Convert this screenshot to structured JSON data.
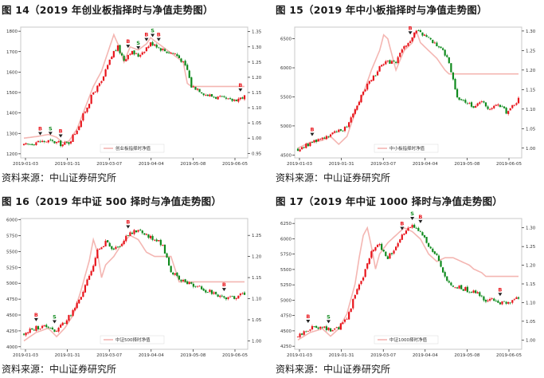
{
  "figures": [
    {
      "title": "图 14（2019 年创业板指择时与净值走势图）",
      "source": "资料来源：中山证券研究所",
      "chart_data": {
        "type": "candlestick",
        "x_ticks": [
          "2019-01-03",
          "2019-01-31",
          "2019-03-07",
          "2019-04-04",
          "2019-05-08",
          "2019-06-05"
        ],
        "left_axis": {
          "ticks": [
            1200,
            1300,
            1400,
            1500,
            1600,
            1700,
            1800
          ],
          "range": [
            1180,
            1820
          ]
        },
        "right_axis": {
          "ticks": [
            "0.95",
            "1.00",
            "1.05",
            "1.10",
            "1.15",
            "1.20",
            "1.25",
            "1.30",
            "1.35"
          ],
          "range": [
            0.935,
            1.365
          ]
        },
        "legend": "创业板指择时净值",
        "index_path": [
          [
            0,
            1240
          ],
          [
            6,
            1258
          ],
          [
            12,
            1262
          ],
          [
            16,
            1255
          ],
          [
            19,
            1245
          ],
          [
            22,
            1255
          ],
          [
            26,
            1320
          ],
          [
            30,
            1410
          ],
          [
            34,
            1500
          ],
          [
            38,
            1550
          ],
          [
            41,
            1630
          ],
          [
            44,
            1700
          ],
          [
            46,
            1720
          ],
          [
            49,
            1660
          ],
          [
            52,
            1700
          ],
          [
            56,
            1680
          ],
          [
            60,
            1720
          ],
          [
            62,
            1740
          ],
          [
            64,
            1740
          ],
          [
            66,
            1720
          ],
          [
            70,
            1700
          ],
          [
            74,
            1690
          ],
          [
            77,
            1660
          ],
          [
            80,
            1610
          ],
          [
            82,
            1530
          ],
          [
            85,
            1520
          ],
          [
            89,
            1490
          ],
          [
            93,
            1480
          ],
          [
            97,
            1470
          ],
          [
            101,
            1460
          ],
          [
            105,
            1470
          ],
          [
            108,
            1480
          ]
        ],
        "nav_path": [
          [
            0,
            1.0
          ],
          [
            6,
            1.005
          ],
          [
            12,
            1.012
          ],
          [
            16,
            1.003
          ],
          [
            19,
            0.985
          ],
          [
            22,
            0.99
          ],
          [
            26,
            1.03
          ],
          [
            30,
            1.1
          ],
          [
            34,
            1.17
          ],
          [
            38,
            1.22
          ],
          [
            41,
            1.28
          ],
          [
            44,
            1.34
          ],
          [
            46,
            1.31
          ],
          [
            49,
            1.25
          ],
          [
            52,
            1.3
          ],
          [
            56,
            1.29
          ],
          [
            60,
            1.31
          ],
          [
            62,
            1.33
          ],
          [
            64,
            1.32
          ],
          [
            66,
            1.31
          ],
          [
            70,
            1.29
          ],
          [
            74,
            1.27
          ],
          [
            78,
            1.25
          ],
          [
            80,
            1.18
          ],
          [
            82,
            1.17
          ],
          [
            108,
            1.17
          ]
        ],
        "signals": [
          {
            "label": "B",
            "i": 8,
            "side": "buy"
          },
          {
            "label": "S",
            "i": 13,
            "side": "sell"
          },
          {
            "label": "B",
            "i": 18,
            "side": "buy"
          },
          {
            "label": "B",
            "i": 51,
            "side": "buy"
          },
          {
            "label": "S",
            "i": 56,
            "side": "sell"
          },
          {
            "label": "B",
            "i": 60,
            "side": "buy"
          },
          {
            "label": "S",
            "i": 63,
            "side": "sell"
          },
          {
            "label": "B",
            "i": 66,
            "side": "buy"
          },
          {
            "label": "B",
            "i": 106,
            "side": "buy"
          }
        ]
      }
    },
    {
      "title": "图 15（2019 年中小板指择时与净值走势图）",
      "source": "资料来源：中山证券研究所",
      "chart_data": {
        "type": "candlestick",
        "x_ticks": [
          "2019-01-03",
          "2019-01-31",
          "2019-03-07",
          "2019-04-04",
          "2019-05-08",
          "2019-06-05"
        ],
        "left_axis": {
          "ticks": [
            4500,
            5000,
            5500,
            6000,
            6500
          ],
          "range": [
            4450,
            6700
          ]
        },
        "right_axis": {
          "ticks": [
            "1.00",
            "1.05",
            "1.10",
            "1.15",
            "1.20",
            "1.25",
            "1.30"
          ],
          "range": [
            0.975,
            1.31
          ]
        },
        "legend": "中小板指择时净值",
        "index_path": [
          [
            0,
            4600
          ],
          [
            6,
            4700
          ],
          [
            12,
            4800
          ],
          [
            16,
            4850
          ],
          [
            20,
            4900
          ],
          [
            24,
            5000
          ],
          [
            28,
            5300
          ],
          [
            32,
            5600
          ],
          [
            36,
            5800
          ],
          [
            40,
            6000
          ],
          [
            44,
            6100
          ],
          [
            48,
            6100
          ],
          [
            52,
            6350
          ],
          [
            56,
            6500
          ],
          [
            58,
            6650
          ],
          [
            62,
            6550
          ],
          [
            66,
            6450
          ],
          [
            70,
            6350
          ],
          [
            74,
            6100
          ],
          [
            78,
            5500
          ],
          [
            82,
            5400
          ],
          [
            86,
            5350
          ],
          [
            90,
            5400
          ],
          [
            94,
            5300
          ],
          [
            98,
            5350
          ],
          [
            102,
            5250
          ],
          [
            106,
            5350
          ],
          [
            108,
            5450
          ]
        ],
        "nav_path": [
          [
            0,
            1.0
          ],
          [
            6,
            1.015
          ],
          [
            12,
            1.02
          ],
          [
            16,
            1.03
          ],
          [
            20,
            1.01
          ],
          [
            24,
            1.03
          ],
          [
            28,
            1.09
          ],
          [
            32,
            1.14
          ],
          [
            36,
            1.2
          ],
          [
            40,
            1.25
          ],
          [
            42,
            1.29
          ],
          [
            44,
            1.28
          ],
          [
            46,
            1.24
          ],
          [
            48,
            1.2
          ],
          [
            52,
            1.25
          ],
          [
            56,
            1.27
          ],
          [
            58,
            1.3
          ],
          [
            60,
            1.27
          ],
          [
            64,
            1.25
          ],
          [
            68,
            1.23
          ],
          [
            72,
            1.2
          ],
          [
            74,
            1.19
          ],
          [
            108,
            1.19
          ]
        ],
        "signals": [
          {
            "label": "B",
            "i": 7,
            "side": "buy"
          },
          {
            "label": "B",
            "i": 55,
            "side": "buy"
          }
        ]
      }
    },
    {
      "title": "图 16（2019 年中证 500 择时与净值走势图）",
      "source": "资料来源：中山证券研究所",
      "chart_data": {
        "type": "candlestick",
        "x_ticks": [
          "2019-01-03",
          "2019-01-31",
          "2019-03-07",
          "2019-04-04",
          "2019-05-08",
          "2019-06-05"
        ],
        "left_axis": {
          "ticks": [
            4000,
            4250,
            4500,
            4750,
            5000,
            5250,
            5500,
            5750,
            6000
          ],
          "range": [
            3960,
            6020
          ]
        },
        "right_axis": {
          "ticks": [
            "1.00",
            "1.05",
            "1.10",
            "1.15",
            "1.20",
            "1.25"
          ],
          "range": [
            0.98,
            1.29
          ]
        },
        "legend": "中证500择时净值",
        "index_path": [
          [
            0,
            4200
          ],
          [
            6,
            4300
          ],
          [
            12,
            4320
          ],
          [
            16,
            4250
          ],
          [
            20,
            4400
          ],
          [
            24,
            4550
          ],
          [
            28,
            4800
          ],
          [
            32,
            5100
          ],
          [
            36,
            5500
          ],
          [
            40,
            5650
          ],
          [
            44,
            5500
          ],
          [
            48,
            5650
          ],
          [
            52,
            5800
          ],
          [
            56,
            5850
          ],
          [
            60,
            5750
          ],
          [
            64,
            5700
          ],
          [
            68,
            5600
          ],
          [
            72,
            5200
          ],
          [
            76,
            5050
          ],
          [
            80,
            5000
          ],
          [
            84,
            4950
          ],
          [
            88,
            4900
          ],
          [
            92,
            4850
          ],
          [
            96,
            4800
          ],
          [
            100,
            4750
          ],
          [
            104,
            4800
          ],
          [
            108,
            4850
          ]
        ],
        "nav_path": [
          [
            0,
            1.0
          ],
          [
            6,
            1.02
          ],
          [
            12,
            1.03
          ],
          [
            16,
            1.01
          ],
          [
            20,
            1.03
          ],
          [
            24,
            1.06
          ],
          [
            28,
            1.12
          ],
          [
            32,
            1.19
          ],
          [
            34,
            1.24
          ],
          [
            36,
            1.21
          ],
          [
            38,
            1.15
          ],
          [
            40,
            1.18
          ],
          [
            44,
            1.2
          ],
          [
            48,
            1.23
          ],
          [
            52,
            1.25
          ],
          [
            56,
            1.24
          ],
          [
            60,
            1.21
          ],
          [
            64,
            1.2
          ],
          [
            72,
            1.2
          ],
          [
            76,
            1.14
          ],
          [
            108,
            1.14
          ]
        ],
        "signals": [
          {
            "label": "B",
            "i": 6,
            "side": "buy"
          },
          {
            "label": "S",
            "i": 15,
            "side": "sell"
          },
          {
            "label": "B",
            "i": 51,
            "side": "buy"
          },
          {
            "label": "B",
            "i": 98,
            "side": "buy"
          }
        ]
      }
    },
    {
      "title": "图 17（2019 年中证 1000 择时与净值走势图）",
      "source": "资料来源：中山证券研究所",
      "chart_data": {
        "type": "candlestick",
        "x_ticks": [
          "2019-01-03",
          "2019-01-31",
          "2019-03-07",
          "2019-04-04",
          "2019-05-08",
          "2019-06-05"
        ],
        "left_axis": {
          "ticks": [
            4250,
            4500,
            4750,
            5000,
            5250,
            5500,
            5750,
            6000,
            6250
          ],
          "range": [
            4200,
            6330
          ]
        },
        "right_axis": {
          "ticks": [
            "1.00",
            "1.05",
            "1.10",
            "1.15",
            "1.20",
            "1.25",
            "1.30"
          ],
          "range": [
            0.975,
            1.325
          ]
        },
        "legend": "中证1000择时净值",
        "index_path": [
          [
            0,
            4400
          ],
          [
            6,
            4550
          ],
          [
            12,
            4580
          ],
          [
            16,
            4500
          ],
          [
            20,
            4550
          ],
          [
            24,
            4700
          ],
          [
            28,
            5100
          ],
          [
            32,
            5400
          ],
          [
            36,
            5800
          ],
          [
            40,
            5900
          ],
          [
            44,
            5700
          ],
          [
            48,
            5850
          ],
          [
            52,
            6100
          ],
          [
            56,
            6200
          ],
          [
            60,
            6150
          ],
          [
            64,
            5850
          ],
          [
            68,
            5700
          ],
          [
            72,
            5350
          ],
          [
            76,
            5200
          ],
          [
            80,
            5200
          ],
          [
            84,
            5150
          ],
          [
            88,
            5100
          ],
          [
            92,
            5000
          ],
          [
            96,
            5000
          ],
          [
            100,
            4950
          ],
          [
            104,
            4950
          ],
          [
            108,
            5050
          ]
        ],
        "nav_path": [
          [
            0,
            1.0
          ],
          [
            6,
            1.02
          ],
          [
            12,
            1.03
          ],
          [
            16,
            1.01
          ],
          [
            20,
            1.03
          ],
          [
            24,
            1.07
          ],
          [
            28,
            1.15
          ],
          [
            30,
            1.22
          ],
          [
            32,
            1.28
          ],
          [
            34,
            1.3
          ],
          [
            36,
            1.25
          ],
          [
            38,
            1.19
          ],
          [
            40,
            1.23
          ],
          [
            44,
            1.26
          ],
          [
            48,
            1.28
          ],
          [
            52,
            1.3
          ],
          [
            56,
            1.29
          ],
          [
            60,
            1.27
          ],
          [
            64,
            1.23
          ],
          [
            68,
            1.21
          ],
          [
            72,
            1.22
          ],
          [
            76,
            1.22
          ],
          [
            80,
            1.21
          ],
          [
            84,
            1.2
          ],
          [
            86,
            1.19
          ],
          [
            90,
            1.18
          ],
          [
            92,
            1.17
          ],
          [
            108,
            1.17
          ]
        ],
        "signals": [
          {
            "label": "B",
            "i": 5,
            "side": "buy"
          },
          {
            "label": "S",
            "i": 15,
            "side": "sell"
          },
          {
            "label": "B",
            "i": 51,
            "side": "buy"
          },
          {
            "label": "S",
            "i": 56,
            "side": "sell"
          },
          {
            "label": "B",
            "i": 60,
            "side": "buy"
          },
          {
            "label": "B",
            "i": 99,
            "side": "buy"
          }
        ]
      }
    }
  ],
  "colors": {
    "up": "#e8141b",
    "down": "#0f8a1d",
    "nav": "#f4b6b2",
    "axis": "#000000",
    "frame": "#c8c8c8"
  }
}
